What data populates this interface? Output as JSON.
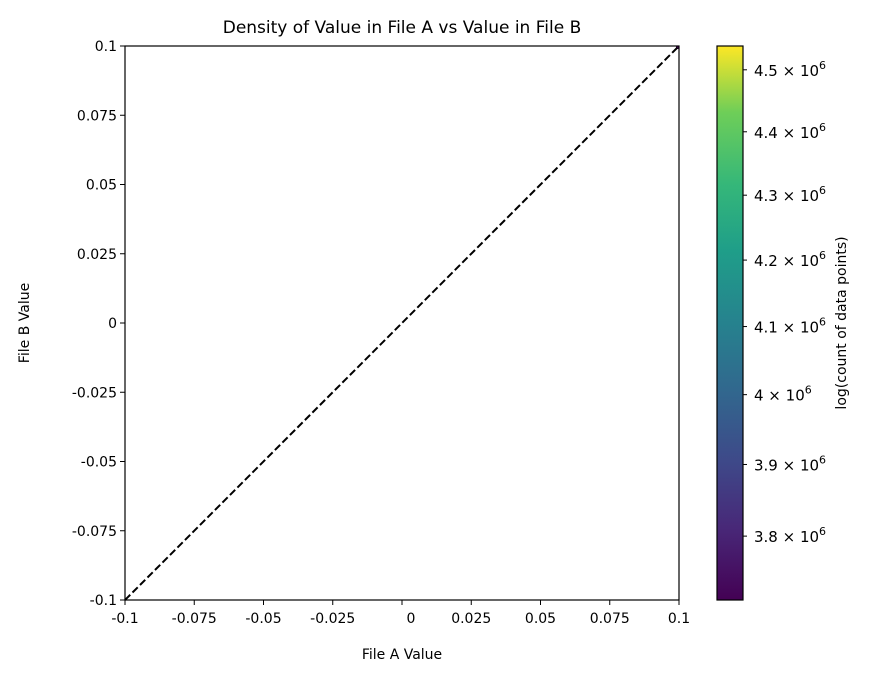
{
  "chart_data": {
    "type": "heatmap",
    "title": "Density of Value in File A vs Value in File B",
    "xlabel": "File A Value",
    "ylabel": "File B Value",
    "xlim": [
      -0.1,
      0.1
    ],
    "ylim": [
      -0.1,
      0.1
    ],
    "xticks": [
      -0.1,
      -0.075,
      -0.05,
      -0.025,
      0,
      0.025,
      0.05,
      0.075,
      0.1
    ],
    "xtick_labels": [
      "-0.1",
      "-0.075",
      "-0.05",
      "-0.025",
      "0",
      "0.025",
      "0.05",
      "0.075",
      "0.1"
    ],
    "yticks": [
      -0.1,
      -0.075,
      -0.05,
      -0.025,
      0,
      0.025,
      0.05,
      0.075,
      0.1
    ],
    "ytick_labels": [
      "-0.1",
      "-0.075",
      "-0.05",
      "-0.025",
      "0",
      "0.025",
      "0.05",
      "0.075",
      "0.1"
    ],
    "reference_line": {
      "from": [
        -0.1,
        -0.1
      ],
      "to": [
        0.1,
        0.1
      ],
      "style": "dashed",
      "color": "#000000"
    },
    "cells": [
      {
        "x": 0.1,
        "y": 0.1
      }
    ],
    "grid": false,
    "colorbar": {
      "label": "log(count of data points)",
      "scale": "log",
      "colormap": "viridis",
      "range": [
        3713000,
        4539000
      ],
      "ticks": [
        3800000,
        3900000,
        4000000,
        4100000,
        4200000,
        4300000,
        4400000,
        4500000
      ],
      "tick_mantissas": [
        "3.8 × 10",
        "3.9 × 10",
        "4 × 10",
        "4.1 × 10",
        "4.2 × 10",
        "4.3 × 10",
        "4.4 × 10",
        "4.5 × 10"
      ],
      "tick_exponent": "6"
    }
  }
}
